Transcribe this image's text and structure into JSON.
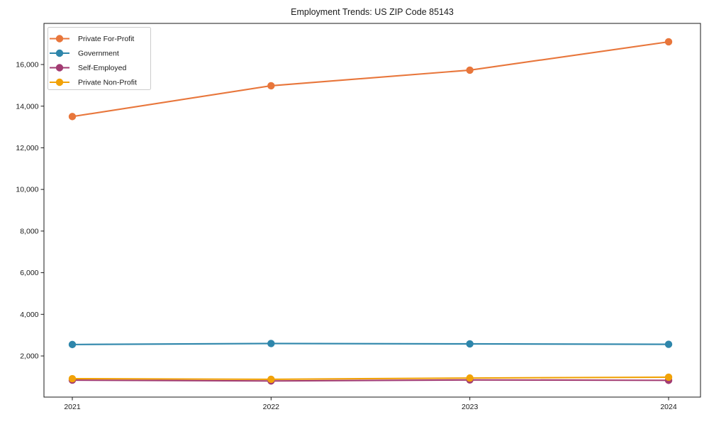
{
  "figure": {
    "title": "Employment Trends: US ZIP Code 85143"
  },
  "chart_data": {
    "type": "line",
    "title": "Employment Trends: US ZIP Code 85143",
    "xlabel": "",
    "ylabel": "",
    "categories": [
      "2021",
      "2022",
      "2023",
      "2024"
    ],
    "series": [
      {
        "name": "Private For-Profit",
        "color": "#e8763b",
        "values": [
          13500,
          14980,
          15730,
          17090
        ]
      },
      {
        "name": "Government",
        "color": "#2e86ab",
        "values": [
          2550,
          2600,
          2580,
          2560
        ]
      },
      {
        "name": "Self-Employed",
        "color": "#a23b72",
        "values": [
          840,
          800,
          850,
          830
        ]
      },
      {
        "name": "Private Non-Profit",
        "color": "#f1a208",
        "values": [
          910,
          880,
          940,
          980
        ]
      }
    ],
    "y_ticks": [
      {
        "value": 2000,
        "label": "2,000"
      },
      {
        "value": 4000,
        "label": "4,000"
      },
      {
        "value": 6000,
        "label": "6,000"
      },
      {
        "value": 8000,
        "label": "8,000"
      },
      {
        "value": 10000,
        "label": "10,000"
      },
      {
        "value": 12000,
        "label": "12,000"
      },
      {
        "value": 14000,
        "label": "14,000"
      },
      {
        "value": 16000,
        "label": "16,000"
      }
    ],
    "ylim": [
      25,
      17975
    ],
    "grid": false,
    "legend_position": "upper-left",
    "axis_color": "#1a1a1a",
    "text_color": "#1a1a1a",
    "legend_border_color": "#cccccc",
    "background_color": "#ffffff"
  }
}
